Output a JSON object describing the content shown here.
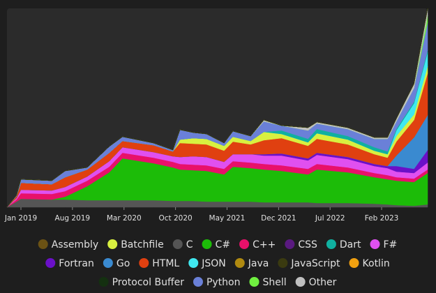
{
  "chart_data": {
    "type": "stacked-area",
    "x": [
      2018.842,
      2018.95,
      2019.0,
      2019.35,
      2019.5,
      2019.75,
      2020.0,
      2020.15,
      2020.5,
      2020.72,
      2020.8,
      2020.95,
      2021.1,
      2021.3,
      2021.4,
      2021.6,
      2021.75,
      2021.95,
      2022.25,
      2022.35,
      2022.7,
      2023.0,
      2023.15,
      2023.25,
      2023.45,
      2023.604
    ],
    "xlim": [
      2018.842,
      2023.604
    ],
    "xticks": [
      {
        "value": 2019.0,
        "label": "Jan 2019"
      },
      {
        "value": 2019.583,
        "label": "Aug 2019"
      },
      {
        "value": 2020.167,
        "label": "Mar 2020"
      },
      {
        "value": 2020.75,
        "label": "Oct 2020"
      },
      {
        "value": 2021.333,
        "label": "May 2021"
      },
      {
        "value": 2021.917,
        "label": "Dec 2021"
      },
      {
        "value": 2022.5,
        "label": "Jul 2022"
      },
      {
        "value": 2023.083,
        "label": "Feb 2023"
      }
    ],
    "ylim": [
      0,
      285
    ],
    "series": [
      {
        "name": "Assembly",
        "color": "#6b5214",
        "values": [
          0,
          0,
          0,
          0,
          0,
          0,
          0,
          0,
          0,
          0,
          0,
          0,
          0,
          0,
          0,
          0,
          0,
          0,
          0,
          0,
          0,
          0,
          0,
          0,
          0,
          0
        ]
      },
      {
        "name": "Batchfile",
        "color": "#d8f040",
        "values": [
          0,
          0,
          0,
          0,
          0,
          0,
          0,
          0,
          0,
          0,
          5,
          8,
          8,
          7,
          7,
          5,
          12,
          6,
          5,
          8,
          7,
          5,
          5,
          8,
          8,
          10
        ]
      },
      {
        "name": "C",
        "color": "#555555",
        "values": [
          0,
          8,
          12,
          11,
          11,
          10,
          10,
          10,
          10,
          9,
          9,
          9,
          8,
          8,
          8,
          8,
          7,
          7,
          7,
          6,
          6,
          5,
          4,
          3,
          2,
          4
        ]
      },
      {
        "name": "C#",
        "color": "#1cbc08",
        "values": [
          0,
          0,
          0,
          0,
          4,
          20,
          40,
          60,
          53,
          48,
          45,
          44,
          44,
          39,
          50,
          48,
          47,
          45,
          40,
          48,
          44,
          38,
          36,
          35,
          34,
          45
        ]
      },
      {
        "name": "C++",
        "color": "#e8106a",
        "values": [
          0,
          3,
          8,
          8,
          8,
          8,
          8,
          8,
          8,
          8,
          8,
          8,
          8,
          8,
          8,
          8,
          8,
          8,
          8,
          8,
          7,
          6,
          6,
          5,
          5,
          5
        ]
      },
      {
        "name": "CSS",
        "color": "#5a1a80",
        "values": [
          0,
          0,
          0,
          0,
          0,
          0,
          0,
          0,
          0,
          0,
          0,
          0,
          0,
          0,
          0,
          0,
          0,
          0,
          0,
          0,
          0,
          0,
          0,
          0,
          0,
          0
        ]
      },
      {
        "name": "Dart",
        "color": "#10b0a0",
        "values": [
          0,
          0,
          0,
          0,
          0,
          0,
          0,
          0,
          0,
          0,
          0,
          0,
          0,
          0,
          0,
          0,
          0,
          5,
          5,
          6,
          5,
          5,
          4,
          2,
          2,
          3
        ]
      },
      {
        "name": "F#",
        "color": "#e050f0",
        "values": [
          0,
          2,
          5,
          5,
          6,
          6,
          8,
          8,
          8,
          8,
          10,
          12,
          12,
          10,
          10,
          12,
          12,
          14,
          12,
          13,
          12,
          10,
          10,
          8,
          8,
          10
        ]
      },
      {
        "name": "Fortran",
        "color": "#6a10c8",
        "values": [
          0,
          0,
          0,
          0,
          0,
          0,
          0,
          0,
          0,
          0,
          0,
          0,
          0,
          0,
          0,
          0,
          2,
          3,
          3,
          3,
          3,
          3,
          3,
          8,
          6,
          18
        ]
      },
      {
        "name": "Go",
        "color": "#3a8ad0",
        "values": [
          0,
          0,
          0,
          0,
          0,
          0,
          0,
          0,
          0,
          0,
          0,
          0,
          0,
          0,
          0,
          0,
          0,
          0,
          0,
          0,
          0,
          0,
          0,
          15,
          45,
          50
        ]
      },
      {
        "name": "HTML",
        "color": "#e04010",
        "values": [
          0,
          3,
          10,
          9,
          14,
          10,
          12,
          9,
          10,
          7,
          20,
          18,
          18,
          16,
          18,
          14,
          20,
          22,
          18,
          20,
          18,
          14,
          12,
          20,
          25,
          60
        ]
      },
      {
        "name": "JSON",
        "color": "#40e8f0",
        "values": [
          0,
          0,
          0,
          0,
          0,
          0,
          0,
          0,
          0,
          0,
          0,
          0,
          0,
          0,
          0,
          0,
          0,
          0,
          0,
          0,
          0,
          0,
          0,
          8,
          16,
          20
        ]
      },
      {
        "name": "Java",
        "color": "#b08a10",
        "values": [
          0,
          0,
          0,
          0,
          0,
          0,
          0,
          0,
          0,
          0,
          0,
          0,
          0,
          0,
          0,
          0,
          0,
          0,
          0,
          0,
          0,
          0,
          0,
          0,
          0,
          0
        ]
      },
      {
        "name": "JavaScript",
        "color": "#3a3a10",
        "values": [
          0,
          0,
          0,
          0,
          0,
          0,
          0,
          0,
          0,
          0,
          0,
          0,
          0,
          0,
          0,
          0,
          0,
          0,
          0,
          0,
          0,
          0,
          0,
          0,
          0,
          0
        ]
      },
      {
        "name": "Kotlin",
        "color": "#f0a010",
        "values": [
          0,
          0,
          0,
          0,
          0,
          0,
          0,
          0,
          0,
          0,
          0,
          0,
          0,
          0,
          0,
          0,
          0,
          0,
          0,
          0,
          0,
          0,
          0,
          0,
          0,
          0
        ]
      },
      {
        "name": "Protocol Buffer",
        "color": "#143010",
        "values": [
          0,
          0,
          0,
          0,
          0,
          0,
          0,
          0,
          0,
          0,
          0,
          0,
          0,
          0,
          0,
          0,
          0,
          0,
          0,
          0,
          0,
          0,
          0,
          0,
          0,
          0
        ]
      },
      {
        "name": "Python",
        "color": "#6a80d8",
        "values": [
          0,
          1,
          5,
          5,
          9,
          3,
          9,
          6,
          3,
          2,
          14,
          8,
          7,
          4,
          8,
          7,
          15,
          7,
          12,
          8,
          10,
          12,
          18,
          11,
          20,
          40
        ]
      },
      {
        "name": "Shell",
        "color": "#70f040",
        "values": [
          0,
          0,
          0,
          0,
          0,
          0,
          0,
          0,
          0,
          0,
          0,
          0,
          0,
          0,
          0,
          0,
          0,
          0,
          0,
          0,
          0,
          0,
          0,
          0,
          0,
          10
        ]
      },
      {
        "name": "Other",
        "color": "#c0c0c0",
        "values": [
          0,
          0,
          0,
          0,
          0,
          0,
          0,
          0,
          0,
          0,
          0,
          0,
          0,
          0,
          0,
          0,
          2,
          0,
          4,
          2,
          2,
          2,
          2,
          4,
          6,
          10
        ]
      }
    ]
  }
}
